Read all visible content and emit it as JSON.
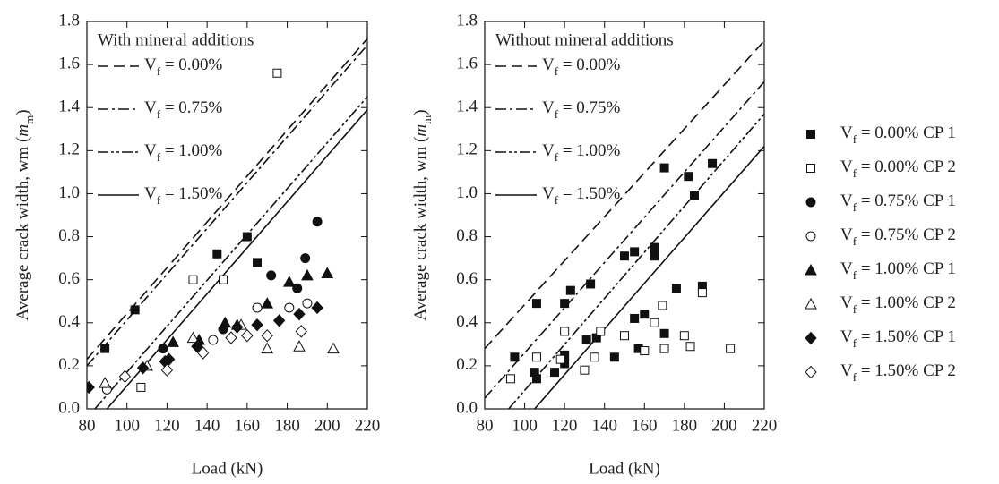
{
  "legend": [
    {
      "name": "Vf = 0.00% CP 1",
      "marker": "square",
      "filled": true
    },
    {
      "name": "Vf = 0.00% CP 2",
      "marker": "square",
      "filled": false
    },
    {
      "name": "Vf = 0.75% CP 1",
      "marker": "circle",
      "filled": true
    },
    {
      "name": "Vf = 0.75% CP 2",
      "marker": "circle",
      "filled": false
    },
    {
      "name": "Vf = 1.00% CP 1",
      "marker": "triangle",
      "filled": true
    },
    {
      "name": "Vf = 1.00% CP 2",
      "marker": "triangle",
      "filled": false
    },
    {
      "name": "Vf = 1.50% CP 1",
      "marker": "diamond",
      "filled": true
    },
    {
      "name": "Vf = 1.50% CP 2",
      "marker": "diamond",
      "filled": false
    }
  ],
  "chart_data": [
    {
      "type": "scatter",
      "panel_title": "With mineral additions",
      "x_label": "Load (kN)",
      "y_label": "Average crack width, wm (mm)",
      "xlim": [
        80,
        220
      ],
      "xticks": [
        80,
        100,
        120,
        140,
        160,
        180,
        200,
        220
      ],
      "ylim": [
        0,
        1.8
      ],
      "yticks": [
        {
          "value": 0,
          "label": "0.0"
        },
        0.2,
        0.4,
        0.6,
        0.8,
        {
          "value": 1,
          "label": "1.0"
        },
        1.2,
        1.4,
        1.6,
        1.8
      ],
      "series": [
        {
          "name": "Vf = 0.00%",
          "mode": "line",
          "dash": "dashed",
          "x": [
            80,
            220
          ],
          "values": [
            0.23,
            1.72
          ]
        },
        {
          "name": "Vf = 0.75%",
          "mode": "line",
          "dash": "dashdot",
          "x": [
            80,
            220
          ],
          "values": [
            0.2,
            1.69
          ]
        },
        {
          "name": "Vf = 1.00%",
          "mode": "line",
          "dash": "dashdotdot",
          "x": [
            84,
            220
          ],
          "values": [
            0,
            1.45
          ]
        },
        {
          "name": "Vf = 1.50%",
          "mode": "line",
          "dash": "solid",
          "x": [
            90,
            220
          ],
          "values": [
            0,
            1.39
          ]
        },
        {
          "mode": "markers",
          "marker": "square",
          "filled": true,
          "x": [
            89,
            104,
            145,
            160,
            165
          ],
          "values": [
            0.28,
            0.46,
            0.72,
            0.8,
            0.68
          ]
        },
        {
          "mode": "markers",
          "marker": "square",
          "filled": false,
          "x": [
            107,
            133,
            148,
            175
          ],
          "values": [
            0.1,
            0.6,
            0.6,
            1.56
          ]
        },
        {
          "mode": "markers",
          "marker": "circle",
          "filled": true,
          "x": [
            118,
            148,
            172,
            185,
            189,
            195
          ],
          "values": [
            0.28,
            0.37,
            0.62,
            0.56,
            0.7,
            0.87
          ]
        },
        {
          "mode": "markers",
          "marker": "circle",
          "filled": false,
          "x": [
            90,
            143,
            165,
            181,
            190
          ],
          "values": [
            0.09,
            0.32,
            0.47,
            0.47,
            0.49
          ]
        },
        {
          "mode": "markers",
          "marker": "triangle",
          "filled": true,
          "x": [
            123,
            136,
            149,
            155,
            170,
            181,
            190,
            200
          ],
          "values": [
            0.31,
            0.32,
            0.4,
            0.39,
            0.49,
            0.59,
            0.62,
            0.63
          ]
        },
        {
          "mode": "markers",
          "marker": "triangle",
          "filled": false,
          "x": [
            89,
            110,
            133,
            157,
            170,
            186,
            203
          ],
          "values": [
            0.12,
            0.2,
            0.33,
            0.39,
            0.28,
            0.29,
            0.28
          ]
        },
        {
          "mode": "markers",
          "marker": "diamond",
          "filled": true,
          "x": [
            81,
            108,
            119,
            121,
            135,
            155,
            165,
            176,
            186,
            195
          ],
          "values": [
            0.1,
            0.19,
            0.22,
            0.23,
            0.29,
            0.38,
            0.39,
            0.41,
            0.44,
            0.47
          ]
        },
        {
          "mode": "markers",
          "marker": "diamond",
          "filled": false,
          "x": [
            99,
            120,
            138,
            152,
            160,
            170,
            187
          ],
          "values": [
            0.15,
            0.18,
            0.26,
            0.33,
            0.34,
            0.34,
            0.36
          ]
        }
      ]
    },
    {
      "type": "scatter",
      "panel_title": "Without mineral additions",
      "x_label": "Load (kN)",
      "y_label": "Average crack width, wm (mm)",
      "xlim": [
        80,
        220
      ],
      "xticks": [
        80,
        100,
        120,
        140,
        160,
        180,
        200,
        220
      ],
      "ylim": [
        0,
        1.8
      ],
      "yticks": [
        {
          "value": 0,
          "label": "0.0"
        },
        0.2,
        0.4,
        0.6,
        0.8,
        {
          "value": 1,
          "label": "1.0"
        },
        1.2,
        1.4,
        1.6,
        1.8
      ],
      "series": [
        {
          "name": "Vf = 0.00%",
          "mode": "line",
          "dash": "dashed",
          "x": [
            80,
            220
          ],
          "values": [
            0.28,
            1.71
          ]
        },
        {
          "name": "Vf = 0.75%",
          "mode": "line",
          "dash": "dashdot",
          "x": [
            80,
            220
          ],
          "values": [
            0.05,
            1.52
          ]
        },
        {
          "name": "Vf = 1.00%",
          "mode": "line",
          "dash": "dashdotdot",
          "x": [
            92,
            220
          ],
          "values": [
            0,
            1.37
          ]
        },
        {
          "name": "Vf = 1.50%",
          "mode": "line",
          "dash": "solid",
          "x": [
            105,
            220
          ],
          "values": [
            0,
            1.22
          ]
        },
        {
          "mode": "markers",
          "marker": "square",
          "filled": true,
          "x": [
            95,
            105,
            106,
            106,
            115,
            120,
            120,
            120,
            123,
            131,
            133,
            136,
            145,
            150,
            155,
            155,
            157,
            160,
            165,
            165,
            170,
            170,
            176,
            182,
            185,
            189,
            194
          ],
          "values": [
            0.24,
            0.17,
            0.49,
            0.14,
            0.17,
            0.25,
            0.49,
            0.21,
            0.55,
            0.32,
            0.58,
            0.33,
            0.24,
            0.71,
            0.73,
            0.42,
            0.28,
            0.44,
            0.71,
            0.75,
            1.12,
            0.35,
            0.56,
            1.08,
            0.99,
            0.57,
            1.14
          ]
        },
        {
          "mode": "markers",
          "marker": "square",
          "filled": false,
          "x": [
            93,
            106,
            118,
            120,
            130,
            135,
            138,
            150,
            160,
            165,
            169,
            170,
            180,
            183,
            189,
            203
          ],
          "values": [
            0.14,
            0.24,
            0.23,
            0.36,
            0.18,
            0.24,
            0.36,
            0.34,
            0.27,
            0.4,
            0.48,
            0.28,
            0.34,
            0.29,
            0.54,
            0.28
          ]
        }
      ]
    }
  ]
}
